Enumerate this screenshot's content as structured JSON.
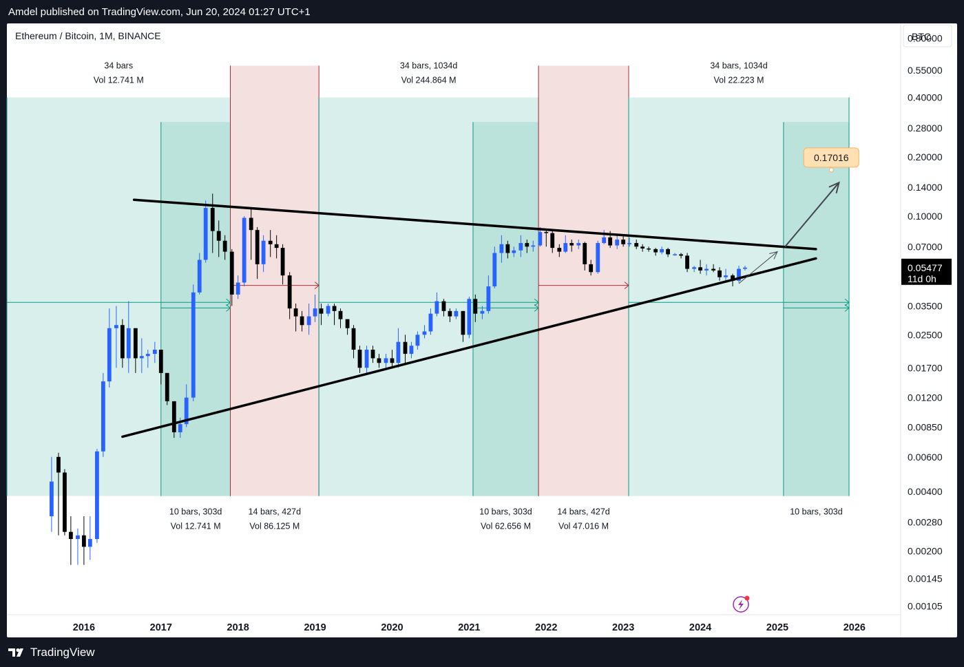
{
  "header": {
    "publisher_line": "Amdel published on TradingView.com, Jun 20, 2024 01:27 UTC+1"
  },
  "footer": {
    "brand": "TradingView"
  },
  "chart_data": {
    "type": "candlestick",
    "title": "Ethereum / Bitcoin, 1M, BINANCE",
    "currency": "BTC",
    "y_scale": "log",
    "ylim": [
      0.00095,
      0.95
    ],
    "xlim": [
      2015.0,
      2026.6
    ],
    "y_ticks": [
      "0.80000",
      "0.55000",
      "0.40000",
      "0.28000",
      "0.20000",
      "0.14000",
      "0.10000",
      "0.07000",
      "0.05477",
      "0.03500",
      "0.02500",
      "0.01700",
      "0.01200",
      "0.00850",
      "0.00600",
      "0.00400",
      "0.00280",
      "0.00200",
      "0.00145",
      "0.00105"
    ],
    "x_ticks": [
      2016,
      2017,
      2018,
      2019,
      2020,
      2021,
      2022,
      2023,
      2024,
      2025,
      2026
    ],
    "last_price": {
      "value": "0.05477",
      "countdown": "11d 0h"
    },
    "target": {
      "value": "0.17016",
      "date": 2025.7
    },
    "colors": {
      "up": "#2962ff",
      "down": "#000000",
      "green_zone": "#d9efec",
      "green_dark": "#bce3db",
      "red_zone": "#f5e0e0",
      "green_line": "#089981",
      "red_line": "#b22833"
    },
    "candles": [
      [
        2015.58,
        0.003,
        0.0045,
        0.006,
        0.0025
      ],
      [
        2015.67,
        0.006,
        0.005,
        0.0063,
        0.0024
      ],
      [
        2015.75,
        0.005,
        0.0025,
        0.0052,
        0.0024
      ],
      [
        2015.83,
        0.0025,
        0.0023,
        0.003,
        0.0017
      ],
      [
        2015.92,
        0.0023,
        0.0024,
        0.0026,
        0.0017
      ],
      [
        2016.0,
        0.0024,
        0.0021,
        0.003,
        0.0017
      ],
      [
        2016.08,
        0.0021,
        0.0023,
        0.003,
        0.0018
      ],
      [
        2016.17,
        0.0023,
        0.0064,
        0.0066,
        0.0022
      ],
      [
        2016.25,
        0.0064,
        0.0145,
        0.016,
        0.006
      ],
      [
        2016.33,
        0.0145,
        0.027,
        0.034,
        0.0135
      ],
      [
        2016.42,
        0.027,
        0.028,
        0.035,
        0.017
      ],
      [
        2016.5,
        0.028,
        0.019,
        0.03,
        0.017
      ],
      [
        2016.58,
        0.019,
        0.027,
        0.037,
        0.016
      ],
      [
        2016.67,
        0.027,
        0.019,
        0.027,
        0.016
      ],
      [
        2016.75,
        0.019,
        0.0195,
        0.024,
        0.016
      ],
      [
        2016.83,
        0.0195,
        0.02,
        0.021,
        0.017
      ],
      [
        2016.92,
        0.02,
        0.021,
        0.023,
        0.018
      ],
      [
        2017.0,
        0.021,
        0.016,
        0.021,
        0.014
      ],
      [
        2017.08,
        0.016,
        0.0115,
        0.016,
        0.011
      ],
      [
        2017.17,
        0.0115,
        0.008,
        0.0115,
        0.0075
      ],
      [
        2017.25,
        0.008,
        0.0088,
        0.0095,
        0.0075
      ],
      [
        2017.33,
        0.0088,
        0.012,
        0.014,
        0.0085
      ],
      [
        2017.42,
        0.012,
        0.041,
        0.045,
        0.0115
      ],
      [
        2017.5,
        0.041,
        0.06,
        0.065,
        0.04
      ],
      [
        2017.58,
        0.06,
        0.11,
        0.12,
        0.058
      ],
      [
        2017.67,
        0.11,
        0.084,
        0.13,
        0.065
      ],
      [
        2017.75,
        0.084,
        0.075,
        0.095,
        0.062
      ],
      [
        2017.83,
        0.075,
        0.066,
        0.08,
        0.06
      ],
      [
        2017.92,
        0.066,
        0.04,
        0.068,
        0.035
      ],
      [
        2018.0,
        0.04,
        0.046,
        0.05,
        0.038
      ],
      [
        2018.08,
        0.046,
        0.098,
        0.1,
        0.044
      ],
      [
        2018.17,
        0.098,
        0.085,
        0.11,
        0.06
      ],
      [
        2018.25,
        0.085,
        0.057,
        0.088,
        0.048
      ],
      [
        2018.33,
        0.057,
        0.075,
        0.08,
        0.052
      ],
      [
        2018.42,
        0.075,
        0.072,
        0.085,
        0.062
      ],
      [
        2018.5,
        0.072,
        0.069,
        0.08,
        0.061
      ],
      [
        2018.58,
        0.069,
        0.05,
        0.072,
        0.045
      ],
      [
        2018.67,
        0.05,
        0.034,
        0.052,
        0.03
      ],
      [
        2018.75,
        0.034,
        0.031,
        0.036,
        0.026
      ],
      [
        2018.83,
        0.031,
        0.028,
        0.033,
        0.026
      ],
      [
        2018.92,
        0.028,
        0.031,
        0.036,
        0.025
      ],
      [
        2019.0,
        0.031,
        0.034,
        0.04,
        0.029
      ],
      [
        2019.08,
        0.034,
        0.032,
        0.036,
        0.028
      ],
      [
        2019.17,
        0.032,
        0.035,
        0.036,
        0.031
      ],
      [
        2019.25,
        0.035,
        0.033,
        0.036,
        0.028
      ],
      [
        2019.33,
        0.033,
        0.03,
        0.034,
        0.027
      ],
      [
        2019.42,
        0.03,
        0.027,
        0.03,
        0.025
      ],
      [
        2019.5,
        0.027,
        0.021,
        0.028,
        0.019
      ],
      [
        2019.58,
        0.021,
        0.017,
        0.022,
        0.016
      ],
      [
        2019.67,
        0.017,
        0.021,
        0.022,
        0.016
      ],
      [
        2019.75,
        0.021,
        0.019,
        0.022,
        0.018
      ],
      [
        2019.83,
        0.019,
        0.018,
        0.02,
        0.017
      ],
      [
        2019.92,
        0.018,
        0.019,
        0.02,
        0.017
      ],
      [
        2020.0,
        0.019,
        0.018,
        0.021,
        0.017
      ],
      [
        2020.08,
        0.018,
        0.023,
        0.027,
        0.017
      ],
      [
        2020.17,
        0.023,
        0.02,
        0.025,
        0.018
      ],
      [
        2020.25,
        0.02,
        0.022,
        0.023,
        0.019
      ],
      [
        2020.33,
        0.022,
        0.025,
        0.026,
        0.021
      ],
      [
        2020.42,
        0.025,
        0.026,
        0.028,
        0.024
      ],
      [
        2020.5,
        0.026,
        0.032,
        0.034,
        0.025
      ],
      [
        2020.58,
        0.032,
        0.037,
        0.041,
        0.031
      ],
      [
        2020.67,
        0.037,
        0.033,
        0.038,
        0.031
      ],
      [
        2020.75,
        0.033,
        0.031,
        0.034,
        0.029
      ],
      [
        2020.83,
        0.031,
        0.033,
        0.034,
        0.03
      ],
      [
        2020.92,
        0.033,
        0.025,
        0.033,
        0.023
      ],
      [
        2021.0,
        0.025,
        0.038,
        0.039,
        0.024
      ],
      [
        2021.08,
        0.038,
        0.032,
        0.04,
        0.029
      ],
      [
        2021.17,
        0.032,
        0.033,
        0.035,
        0.03
      ],
      [
        2021.25,
        0.033,
        0.044,
        0.05,
        0.032
      ],
      [
        2021.33,
        0.044,
        0.065,
        0.07,
        0.043
      ],
      [
        2021.42,
        0.065,
        0.072,
        0.08,
        0.058
      ],
      [
        2021.5,
        0.072,
        0.065,
        0.075,
        0.061
      ],
      [
        2021.58,
        0.065,
        0.067,
        0.07,
        0.062
      ],
      [
        2021.67,
        0.067,
        0.073,
        0.08,
        0.062
      ],
      [
        2021.75,
        0.073,
        0.07,
        0.076,
        0.065
      ],
      [
        2021.83,
        0.07,
        0.071,
        0.075,
        0.066
      ],
      [
        2021.92,
        0.071,
        0.083,
        0.088,
        0.07
      ],
      [
        2022.0,
        0.083,
        0.082,
        0.086,
        0.07
      ],
      [
        2022.08,
        0.082,
        0.069,
        0.084,
        0.065
      ],
      [
        2022.17,
        0.069,
        0.066,
        0.072,
        0.062
      ],
      [
        2022.25,
        0.066,
        0.073,
        0.08,
        0.065
      ],
      [
        2022.33,
        0.073,
        0.071,
        0.076,
        0.066
      ],
      [
        2022.42,
        0.071,
        0.073,
        0.076,
        0.068
      ],
      [
        2022.5,
        0.073,
        0.057,
        0.074,
        0.053
      ],
      [
        2022.58,
        0.057,
        0.052,
        0.06,
        0.05
      ],
      [
        2022.67,
        0.052,
        0.073,
        0.075,
        0.051
      ],
      [
        2022.75,
        0.073,
        0.078,
        0.085,
        0.072
      ],
      [
        2022.83,
        0.078,
        0.071,
        0.084,
        0.069
      ],
      [
        2022.92,
        0.071,
        0.076,
        0.08,
        0.068
      ],
      [
        2023.0,
        0.076,
        0.072,
        0.079,
        0.07
      ],
      [
        2023.08,
        0.072,
        0.073,
        0.078,
        0.07
      ],
      [
        2023.17,
        0.073,
        0.07,
        0.076,
        0.068
      ],
      [
        2023.25,
        0.07,
        0.0685,
        0.072,
        0.066
      ],
      [
        2023.33,
        0.0685,
        0.068,
        0.07,
        0.066
      ],
      [
        2023.42,
        0.068,
        0.0655,
        0.069,
        0.063
      ],
      [
        2023.5,
        0.0655,
        0.068,
        0.07,
        0.064
      ],
      [
        2023.58,
        0.068,
        0.064,
        0.069,
        0.062
      ],
      [
        2023.67,
        0.064,
        0.064,
        0.065,
        0.063
      ],
      [
        2023.75,
        0.064,
        0.063,
        0.065,
        0.061
      ],
      [
        2023.83,
        0.063,
        0.054,
        0.065,
        0.052
      ],
      [
        2023.92,
        0.054,
        0.055,
        0.056,
        0.052
      ],
      [
        2024.0,
        0.055,
        0.053,
        0.06,
        0.051
      ],
      [
        2024.08,
        0.053,
        0.054,
        0.057,
        0.05
      ],
      [
        2024.17,
        0.054,
        0.053,
        0.057,
        0.052
      ],
      [
        2024.25,
        0.053,
        0.049,
        0.055,
        0.047
      ],
      [
        2024.33,
        0.049,
        0.05,
        0.054,
        0.046
      ],
      [
        2024.42,
        0.05,
        0.047,
        0.051,
        0.044
      ],
      [
        2024.5,
        0.047,
        0.054,
        0.056,
        0.046
      ],
      [
        2024.58,
        0.054,
        0.0548,
        0.056,
        0.053
      ]
    ],
    "trendlines": [
      {
        "name": "upper-resistance",
        "from": [
          2016.65,
          0.121
        ],
        "to": [
          2025.5,
          0.068
        ]
      },
      {
        "name": "lower-support",
        "from": [
          2016.5,
          0.0076
        ],
        "to": [
          2025.5,
          0.061
        ]
      }
    ],
    "projection_arrows": [
      {
        "from": [
          2024.5,
          0.0455
        ],
        "to": [
          2025.0,
          0.066
        ],
        "style": "thin"
      },
      {
        "from": [
          2025.1,
          0.07
        ],
        "to": [
          2025.8,
          0.148
        ],
        "style": "thick"
      }
    ],
    "zones": [
      {
        "kind": "green",
        "x0": 2015.0,
        "x1": 2017.9,
        "y0": 0.0038,
        "y1": 0.4,
        "label": "34 bars",
        "vol": "Vol 12.741 M",
        "label_pos": "top"
      },
      {
        "kind": "green_dark",
        "x0": 2017.0,
        "x1": 2017.9,
        "y0": 0.0038,
        "y1": 0.3,
        "label": "10 bars, 303d",
        "vol": "Vol 12.741 M",
        "label_pos": "bottom"
      },
      {
        "kind": "red",
        "x0": 2017.9,
        "x1": 2019.05,
        "y0": 0.0038,
        "y1": 0.58,
        "label": "14 bars, 427d",
        "vol": "Vol 86.125 M",
        "label_pos": "bottom"
      },
      {
        "kind": "green",
        "x0": 2019.05,
        "x1": 2021.9,
        "y0": 0.0038,
        "y1": 0.4,
        "label": "34 bars, 1034d",
        "vol": "Vol 244.864 M",
        "label_pos": "top"
      },
      {
        "kind": "green_dark",
        "x0": 2021.05,
        "x1": 2021.9,
        "y0": 0.0038,
        "y1": 0.3,
        "label": "10 bars, 303d",
        "vol": "Vol 62.656 M",
        "label_pos": "bottom"
      },
      {
        "kind": "red",
        "x0": 2021.9,
        "x1": 2023.07,
        "y0": 0.0038,
        "y1": 0.58,
        "label": "14 bars, 427d",
        "vol": "Vol 47.016 M",
        "label_pos": "bottom"
      },
      {
        "kind": "green",
        "x0": 2023.07,
        "x1": 2025.93,
        "y0": 0.0038,
        "y1": 0.4,
        "label": "34 bars, 1034d",
        "vol": "Vol 22.223 M",
        "label_pos": "top"
      },
      {
        "kind": "green_dark",
        "x0": 2025.08,
        "x1": 2025.93,
        "y0": 0.0038,
        "y1": 0.3,
        "label": "10 bars, 303d",
        "vol": "",
        "label_pos": "bottom"
      }
    ],
    "range_arrows": [
      {
        "kind": "green",
        "x0": 2015.0,
        "x1": 2017.9,
        "y": 0.0365
      },
      {
        "kind": "green",
        "x0": 2017.0,
        "x1": 2017.9,
        "y": 0.0342
      },
      {
        "kind": "red",
        "x0": 2017.9,
        "x1": 2019.05,
        "y": 0.0445
      },
      {
        "kind": "green",
        "x0": 2019.05,
        "x1": 2021.9,
        "y": 0.0365
      },
      {
        "kind": "green",
        "x0": 2021.05,
        "x1": 2021.9,
        "y": 0.0342
      },
      {
        "kind": "red",
        "x0": 2021.9,
        "x1": 2023.07,
        "y": 0.0445
      },
      {
        "kind": "green",
        "x0": 2023.07,
        "x1": 2025.93,
        "y": 0.0365
      },
      {
        "kind": "green",
        "x0": 2025.08,
        "x1": 2025.93,
        "y": 0.0342
      }
    ]
  }
}
